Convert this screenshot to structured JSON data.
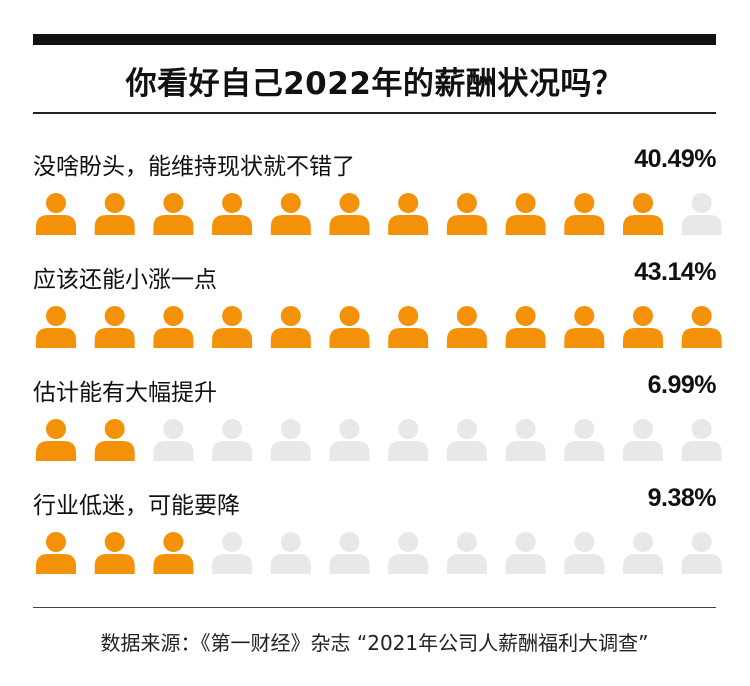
{
  "title": "你看好自己2022年的薪酬状况吗？",
  "source": "数据来源：《第一财经》杂志 “2021年公司人薪酬福利大调查”",
  "colors": {
    "filled": "#f39208",
    "empty": "#e8e8e8",
    "bar": "#111111",
    "text": "#111111"
  },
  "icon": "person-icon",
  "chart_data": {
    "type": "pictograph",
    "title": "你看好自己2022年的薪酬状况吗？",
    "icons_per_row": 12,
    "categories": [
      "没啥盼头，能维持现状就不错了",
      "应该还能小涨一点",
      "估计能有大幅提升",
      "行业低迷，可能要降"
    ],
    "values": [
      40.49,
      43.14,
      6.99,
      9.38
    ],
    "value_labels": [
      "40.49%",
      "43.14%",
      "6.99%",
      "9.38%"
    ],
    "filled_icons": [
      11,
      12,
      2,
      3
    ]
  }
}
